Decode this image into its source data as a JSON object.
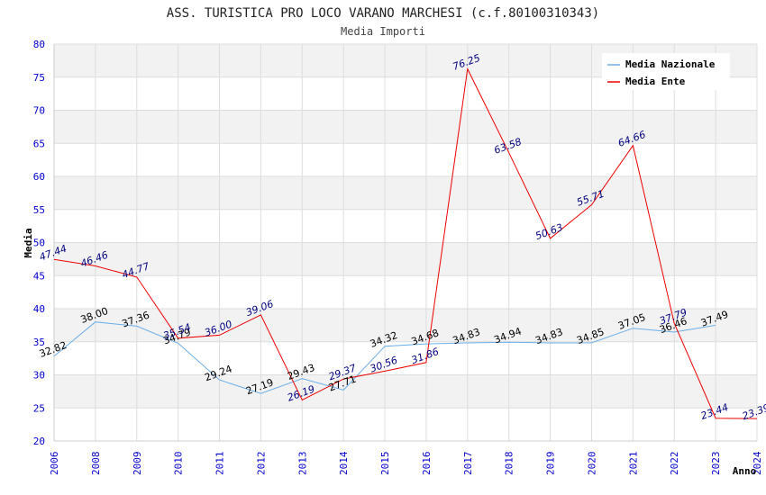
{
  "chart_data": {
    "type": "line",
    "title": "ASS. TURISTICA PRO LOCO VARANO MARCHESI (c.f.80100310343)",
    "subtitle": "Media Importi",
    "xlabel": "Anno",
    "ylabel": "Media",
    "ylim": [
      20,
      80
    ],
    "yticks": [
      20,
      25,
      30,
      35,
      40,
      45,
      50,
      55,
      60,
      65,
      70,
      75,
      80
    ],
    "categories": [
      "2006",
      "2008",
      "2009",
      "2010",
      "2011",
      "2012",
      "2013",
      "2014",
      "2015",
      "2016",
      "2017",
      "2018",
      "2019",
      "2020",
      "2021",
      "2022",
      "2023",
      "2024"
    ],
    "legend_position": "top-right",
    "grid": true,
    "series": [
      {
        "name": "Media Nazionale",
        "color": "#6aaee8",
        "values": [
          32.82,
          38.0,
          37.36,
          34.79,
          29.24,
          27.19,
          29.43,
          27.71,
          34.32,
          34.68,
          34.83,
          34.94,
          34.83,
          34.85,
          37.05,
          36.46,
          37.49,
          null
        ],
        "labels": [
          "32.82",
          "38.00",
          "37.36",
          "34.79",
          "29.24",
          "27.19",
          "29.43",
          "27.71",
          "34.32",
          "34.68",
          "34.83",
          "34.94",
          "34.83",
          "34.85",
          "37.05",
          "36.46",
          "37.49",
          ""
        ]
      },
      {
        "name": "Media Ente",
        "color": "#ee0000",
        "values": [
          47.44,
          46.46,
          44.77,
          35.54,
          36.0,
          39.06,
          26.19,
          29.37,
          30.56,
          31.86,
          76.25,
          63.58,
          50.63,
          55.71,
          64.66,
          37.79,
          23.44,
          23.39
        ],
        "labels": [
          "47.44",
          "46.46",
          "44.77",
          "35.54",
          "36.00",
          "39.06",
          "26.19",
          "29.37",
          "30.56",
          "31.86",
          "76.25",
          "63.58",
          "50.63",
          "55.71",
          "64.66",
          "37.79",
          "23.44",
          "23.39"
        ]
      }
    ]
  }
}
